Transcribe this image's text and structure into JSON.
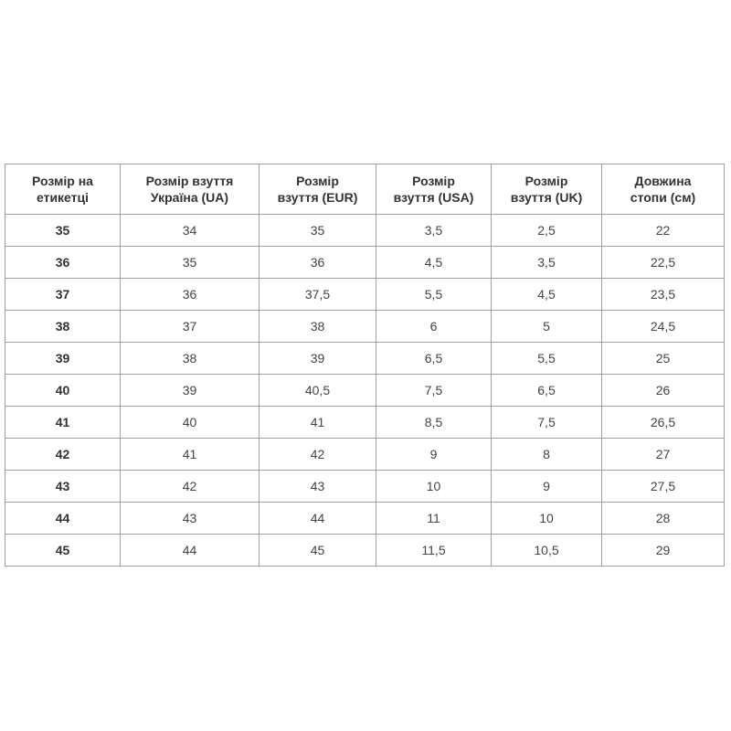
{
  "table": {
    "headers": [
      [
        "Розмір на",
        "етикетці"
      ],
      [
        "Розмір взуття",
        "Україна (UA)"
      ],
      [
        "Розмір",
        "взуття (EUR)"
      ],
      [
        "Розмір",
        "взуття (USA)"
      ],
      [
        "Розмір",
        "взуття (UK)"
      ],
      [
        "Довжина",
        "стопи (см)"
      ]
    ],
    "rows": [
      [
        "35",
        "34",
        "35",
        "3,5",
        "2,5",
        "22"
      ],
      [
        "36",
        "35",
        "36",
        "4,5",
        "3,5",
        "22,5"
      ],
      [
        "37",
        "36",
        "37,5",
        "5,5",
        "4,5",
        "23,5"
      ],
      [
        "38",
        "37",
        "38",
        "6",
        "5",
        "24,5"
      ],
      [
        "39",
        "38",
        "39",
        "6,5",
        "5,5",
        "25"
      ],
      [
        "40",
        "39",
        "40,5",
        "7,5",
        "6,5",
        "26"
      ],
      [
        "41",
        "40",
        "41",
        "8,5",
        "7,5",
        "26,5"
      ],
      [
        "42",
        "41",
        "42",
        "9",
        "8",
        "27"
      ],
      [
        "43",
        "42",
        "43",
        "10",
        "9",
        "27,5"
      ],
      [
        "44",
        "43",
        "44",
        "11",
        "10",
        "28"
      ],
      [
        "45",
        "44",
        "45",
        "11,5",
        "10,5",
        "29"
      ]
    ]
  }
}
